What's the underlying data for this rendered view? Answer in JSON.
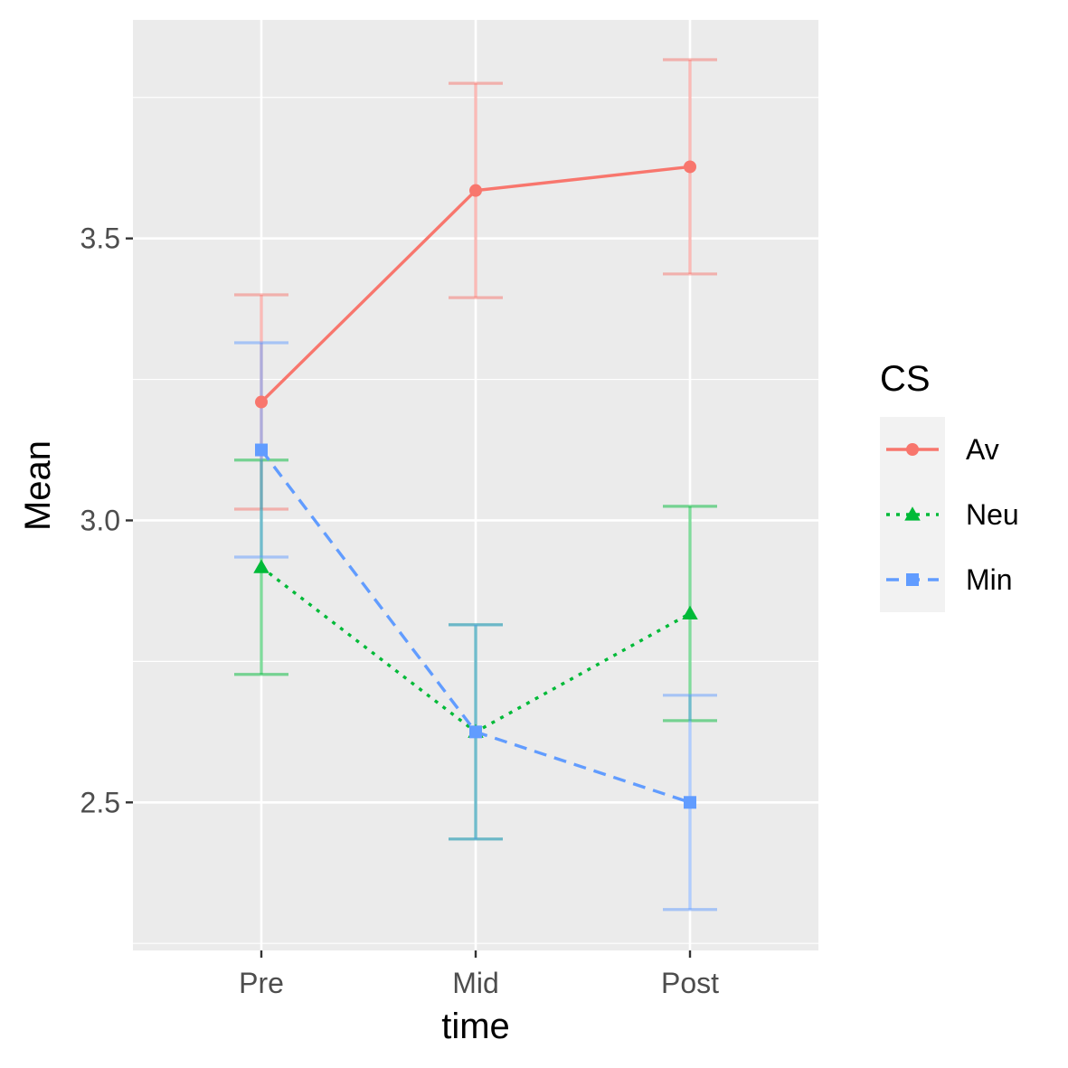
{
  "chart_data": {
    "type": "line",
    "categories": [
      "Pre",
      "Mid",
      "Post"
    ],
    "xlabel": "time",
    "ylabel": "Mean",
    "ylim": [
      2.2375,
      3.8875
    ],
    "yticks": [
      2.5,
      3.0,
      3.5
    ],
    "ytick_labels": [
      "2.5",
      "3.0",
      "3.5"
    ],
    "grid": true,
    "legend": {
      "title": "CS",
      "position": "right"
    },
    "series": [
      {
        "name": "Av",
        "color": "#F8766D",
        "marker": "circle",
        "linestyle": "solid",
        "values": [
          3.21,
          3.585,
          3.627
        ],
        "error_low": [
          3.02,
          3.395,
          3.437
        ],
        "error_high": [
          3.4,
          3.775,
          3.817
        ]
      },
      {
        "name": "Neu",
        "color": "#00BA38",
        "marker": "triangle",
        "linestyle": "dotted",
        "values": [
          2.917,
          2.625,
          2.835
        ],
        "error_low": [
          2.727,
          2.435,
          2.645
        ],
        "error_high": [
          3.107,
          2.815,
          3.025
        ]
      },
      {
        "name": "Min",
        "color": "#619CFF",
        "marker": "square",
        "linestyle": "dashed",
        "values": [
          3.125,
          2.625,
          2.5
        ],
        "error_low": [
          2.935,
          2.435,
          2.31
        ],
        "error_high": [
          3.315,
          2.815,
          2.69
        ]
      }
    ]
  }
}
